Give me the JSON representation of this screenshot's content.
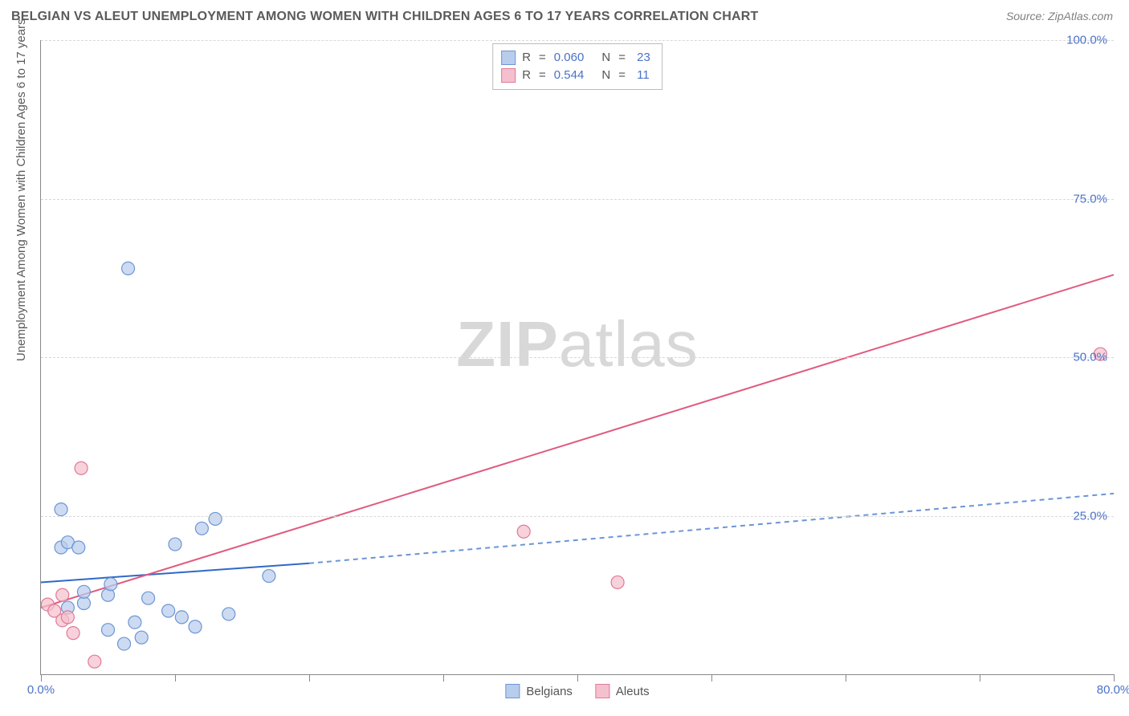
{
  "title": "BELGIAN VS ALEUT UNEMPLOYMENT AMONG WOMEN WITH CHILDREN AGES 6 TO 17 YEARS CORRELATION CHART",
  "source_label": "Source:",
  "source_name": "ZipAtlas.com",
  "ylabel": "Unemployment Among Women with Children Ages 6 to 17 years",
  "watermark_zip": "ZIP",
  "watermark_atlas": "atlas",
  "chart": {
    "type": "scatter_with_trend",
    "xlim": [
      0,
      80
    ],
    "ylim": [
      0,
      100
    ],
    "x_ticks_major": [
      0,
      80
    ],
    "x_ticks_minor": [
      10,
      20,
      30,
      40,
      50,
      60,
      70
    ],
    "y_ticks": [
      25,
      50,
      75,
      100
    ],
    "x_tick_format": "pct1",
    "y_tick_format": "pct1",
    "background_color": "#ffffff",
    "grid_color": "#d8d8d8",
    "axis_color": "#888888",
    "tick_label_color": "#4a72c8",
    "marker_radius": 8,
    "marker_stroke_width": 1.2,
    "series": [
      {
        "name": "Belgians",
        "legend_label": "Belgians",
        "fill": "#b8cdec",
        "stroke": "#6d95d6",
        "fill_opacity": 0.72,
        "trend": {
          "x1": 0,
          "y1": 14.5,
          "x2_solid": 20,
          "y2_solid": 17.5,
          "x2": 80,
          "y2": 28.5,
          "solid_color": "#2f68c9",
          "dash_color": "#6b95d6",
          "width": 2,
          "dash": "6,5"
        },
        "r_value": "0.060",
        "n_value": "23",
        "points": [
          {
            "x": 2.0,
            "y": 10.5
          },
          {
            "x": 3.2,
            "y": 11.2
          },
          {
            "x": 3.2,
            "y": 13.0
          },
          {
            "x": 1.5,
            "y": 20.0
          },
          {
            "x": 2.0,
            "y": 20.8
          },
          {
            "x": 2.8,
            "y": 20.0
          },
          {
            "x": 1.5,
            "y": 26.0
          },
          {
            "x": 5.0,
            "y": 7.0
          },
          {
            "x": 5.0,
            "y": 12.5
          },
          {
            "x": 5.2,
            "y": 14.2
          },
          {
            "x": 6.5,
            "y": 64.0
          },
          {
            "x": 6.2,
            "y": 4.8
          },
          {
            "x": 7.0,
            "y": 8.2
          },
          {
            "x": 7.5,
            "y": 5.8
          },
          {
            "x": 8.0,
            "y": 12.0
          },
          {
            "x": 9.5,
            "y": 10.0
          },
          {
            "x": 10.5,
            "y": 9.0
          },
          {
            "x": 10.0,
            "y": 20.5
          },
          {
            "x": 11.5,
            "y": 7.5
          },
          {
            "x": 12.0,
            "y": 23.0
          },
          {
            "x": 13.0,
            "y": 24.5
          },
          {
            "x": 14.0,
            "y": 9.5
          },
          {
            "x": 17.0,
            "y": 15.5
          }
        ]
      },
      {
        "name": "Aleuts",
        "legend_label": "Aleuts",
        "fill": "#f4c0cd",
        "stroke": "#e17a98",
        "fill_opacity": 0.72,
        "trend": {
          "x1": 0,
          "y1": 10.5,
          "x2_solid": 80,
          "y2_solid": 63.0,
          "x2": 80,
          "y2": 63.0,
          "solid_color": "#e05a7e",
          "dash_color": "#e05a7e",
          "width": 2,
          "dash": null
        },
        "r_value": "0.544",
        "n_value": "11",
        "points": [
          {
            "x": 0.5,
            "y": 11.0
          },
          {
            "x": 1.0,
            "y": 10.0
          },
          {
            "x": 1.6,
            "y": 8.5
          },
          {
            "x": 1.6,
            "y": 12.5
          },
          {
            "x": 2.0,
            "y": 9.0
          },
          {
            "x": 2.4,
            "y": 6.5
          },
          {
            "x": 3.0,
            "y": 32.5
          },
          {
            "x": 4.0,
            "y": 2.0
          },
          {
            "x": 36.0,
            "y": 22.5
          },
          {
            "x": 43.0,
            "y": 14.5
          },
          {
            "x": 79.0,
            "y": 50.5
          }
        ]
      }
    ],
    "legend_top": {
      "r_label": "R",
      "n_label": "N",
      "eq": "="
    }
  }
}
